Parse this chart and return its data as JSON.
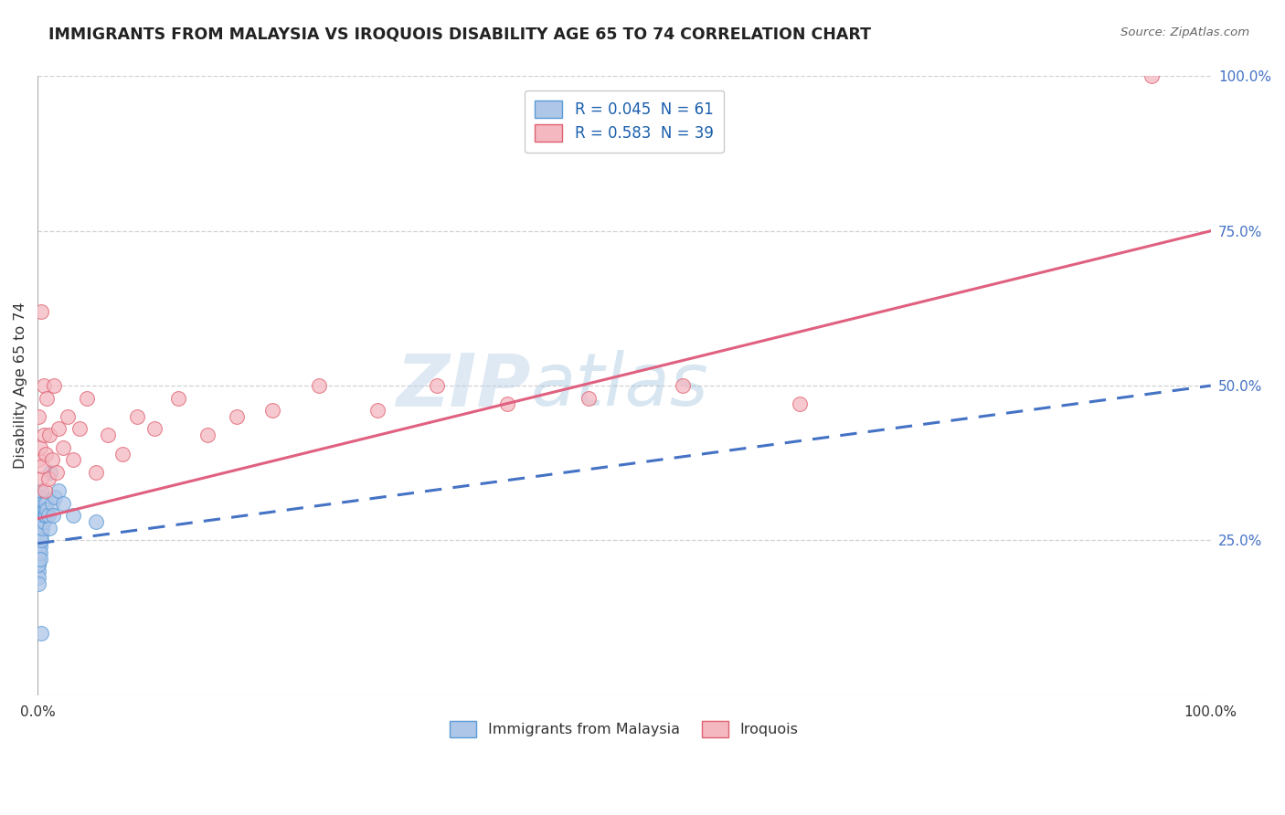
{
  "title": "IMMIGRANTS FROM MALAYSIA VS IROQUOIS DISABILITY AGE 65 TO 74 CORRELATION CHART",
  "source": "Source: ZipAtlas.com",
  "ylabel": "Disability Age 65 to 74",
  "xlim": [
    0,
    1.0
  ],
  "ylim": [
    0,
    1.0
  ],
  "ytick_positions_right": [
    1.0,
    0.75,
    0.5,
    0.25
  ],
  "ytick_labels_right": [
    "100.0%",
    "75.0%",
    "50.0%",
    "25.0%"
  ],
  "watermark_zip": "ZIP",
  "watermark_atlas": "atlas",
  "blue_line_color": "#4472c4",
  "pink_line_color": "#e06080",
  "blue_dot_color": "#aec6e8",
  "pink_dot_color": "#f4b8c1",
  "blue_dot_edge": "#5b9bd5",
  "pink_dot_edge": "#e06070",
  "grid_color": "#cccccc",
  "background_color": "#ffffff",
  "blue_line_x0": 0.0,
  "blue_line_y0": 0.245,
  "blue_line_x1": 1.0,
  "blue_line_y1": 0.5,
  "pink_line_x0": 0.0,
  "pink_line_y0": 0.285,
  "pink_line_x1": 1.0,
  "pink_line_y1": 0.75,
  "malaysia_x": [
    0.001,
    0.001,
    0.001,
    0.001,
    0.001,
    0.001,
    0.001,
    0.001,
    0.001,
    0.001,
    0.001,
    0.001,
    0.001,
    0.001,
    0.001,
    0.001,
    0.001,
    0.001,
    0.001,
    0.001,
    0.002,
    0.002,
    0.002,
    0.002,
    0.002,
    0.002,
    0.002,
    0.002,
    0.002,
    0.002,
    0.003,
    0.003,
    0.003,
    0.003,
    0.003,
    0.003,
    0.003,
    0.003,
    0.003,
    0.004,
    0.004,
    0.004,
    0.004,
    0.005,
    0.005,
    0.005,
    0.006,
    0.006,
    0.007,
    0.007,
    0.008,
    0.009,
    0.01,
    0.011,
    0.012,
    0.013,
    0.015,
    0.018,
    0.022,
    0.03,
    0.05
  ],
  "malaysia_y": [
    0.28,
    0.26,
    0.25,
    0.24,
    0.23,
    0.22,
    0.21,
    0.2,
    0.19,
    0.18,
    0.3,
    0.29,
    0.28,
    0.27,
    0.26,
    0.25,
    0.24,
    0.23,
    0.22,
    0.21,
    0.32,
    0.3,
    0.29,
    0.28,
    0.27,
    0.26,
    0.25,
    0.24,
    0.23,
    0.22,
    0.33,
    0.31,
    0.3,
    0.29,
    0.28,
    0.27,
    0.26,
    0.25,
    0.1,
    0.3,
    0.29,
    0.28,
    0.27,
    0.31,
    0.3,
    0.28,
    0.3,
    0.29,
    0.31,
    0.29,
    0.3,
    0.29,
    0.27,
    0.36,
    0.31,
    0.29,
    0.32,
    0.33,
    0.31,
    0.29,
    0.28
  ],
  "iroquois_x": [
    0.001,
    0.001,
    0.002,
    0.003,
    0.003,
    0.004,
    0.005,
    0.005,
    0.006,
    0.007,
    0.008,
    0.009,
    0.01,
    0.012,
    0.014,
    0.016,
    0.018,
    0.022,
    0.026,
    0.03,
    0.036,
    0.042,
    0.05,
    0.06,
    0.072,
    0.085,
    0.1,
    0.12,
    0.145,
    0.17,
    0.2,
    0.24,
    0.29,
    0.34,
    0.4,
    0.47,
    0.55,
    0.65,
    0.95
  ],
  "iroquois_y": [
    0.38,
    0.45,
    0.4,
    0.62,
    0.35,
    0.37,
    0.42,
    0.5,
    0.33,
    0.39,
    0.48,
    0.35,
    0.42,
    0.38,
    0.5,
    0.36,
    0.43,
    0.4,
    0.45,
    0.38,
    0.43,
    0.48,
    0.36,
    0.42,
    0.39,
    0.45,
    0.43,
    0.48,
    0.42,
    0.45,
    0.46,
    0.5,
    0.46,
    0.5,
    0.47,
    0.48,
    0.5,
    0.47,
    1.0
  ]
}
